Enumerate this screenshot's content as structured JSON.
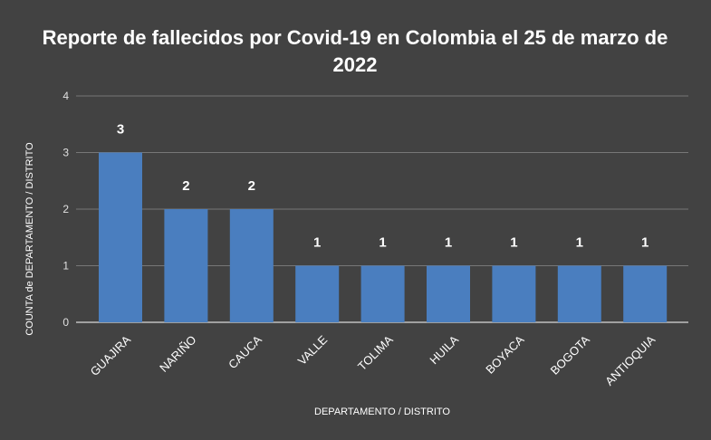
{
  "chart_data": {
    "type": "bar",
    "title": "Reporte de fallecidos por Covid-19 en Colombia el 25 de marzo de 2022",
    "title_lines": [
      "Reporte de fallecidos por Covid-19 en Colombia el 25 de marzo de",
      "2022"
    ],
    "xlabel": "DEPARTAMENTO / DISTRITO",
    "ylabel": "COUNTA de DEPARTAMENTO / DISTRITO",
    "categories": [
      "GUAJIRA",
      "NARIÑO",
      "CAUCA",
      "VALLE",
      "TOLIMA",
      "HUILA",
      "BOYACA",
      "BOGOTA",
      "ANTIOQUIA"
    ],
    "values": [
      3,
      2,
      2,
      1,
      1,
      1,
      1,
      1,
      1
    ],
    "ylim": [
      0,
      4
    ],
    "yticks": [
      0,
      1,
      2,
      3,
      4
    ],
    "grid": true,
    "data_labels": true,
    "colors": {
      "background": "#424242",
      "bar": "#4a7ebf",
      "grid": "#777777",
      "baseline": "#ffffff"
    }
  }
}
